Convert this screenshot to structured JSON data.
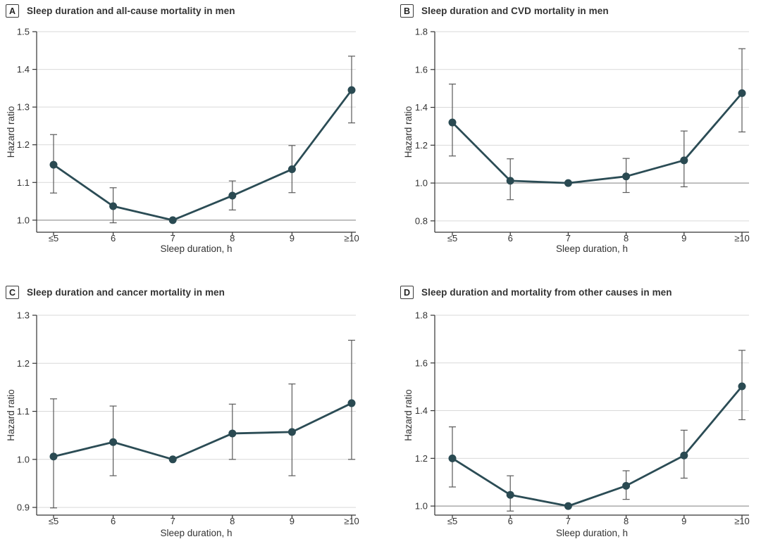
{
  "figure": {
    "description": "Four-panel line charts of hazard ratios by sleep duration in men",
    "colors": {
      "line": "#2b4c55",
      "marker": "#2a4a52",
      "error_bar": "#5a5a5a",
      "grid": "#d9d9d9",
      "ref_line": "#9b9b9b",
      "axis": "#333333",
      "text": "#333333"
    }
  },
  "chart_data": [
    {
      "type": "line",
      "panel_label": "A",
      "title": "Sleep duration and all-cause mortality in men",
      "xlabel": "Sleep duration, h",
      "ylabel": "Hazard ratio",
      "categories": [
        "≤5",
        "6",
        "7",
        "8",
        "9",
        "≥10"
      ],
      "yticks": [
        1.0,
        1.1,
        1.2,
        1.3,
        1.4,
        1.5
      ],
      "ylim": [
        0.968,
        1.5
      ],
      "ref_value": 1.0,
      "ref_dark": true,
      "grid": true,
      "legend": false,
      "points": [
        {
          "x": "≤5",
          "hr": 1.147,
          "lo": 1.072,
          "hi": 1.227
        },
        {
          "x": "6",
          "hr": 1.037,
          "lo": 0.993,
          "hi": 1.086
        },
        {
          "x": "7",
          "hr": 1.0,
          "lo": null,
          "hi": null
        },
        {
          "x": "8",
          "hr": 1.065,
          "lo": 1.027,
          "hi": 1.104
        },
        {
          "x": "9",
          "hr": 1.135,
          "lo": 1.073,
          "hi": 1.198
        },
        {
          "x": "≥10",
          "hr": 1.345,
          "lo": 1.258,
          "hi": 1.435
        }
      ]
    },
    {
      "type": "line",
      "panel_label": "B",
      "title": "Sleep duration and CVD mortality in men",
      "xlabel": "Sleep duration, h",
      "ylabel": "Hazard ratio",
      "categories": [
        "≤5",
        "6",
        "7",
        "8",
        "9",
        "≥10"
      ],
      "yticks": [
        0.8,
        1.0,
        1.2,
        1.4,
        1.6,
        1.8
      ],
      "ylim": [
        0.74,
        1.8
      ],
      "ref_value": 1.0,
      "ref_dark": true,
      "grid": true,
      "legend": false,
      "points": [
        {
          "x": "≤5",
          "hr": 1.32,
          "lo": 1.143,
          "hi": 1.523
        },
        {
          "x": "6",
          "hr": 1.012,
          "lo": 0.912,
          "hi": 1.128
        },
        {
          "x": "7",
          "hr": 1.0,
          "lo": null,
          "hi": null
        },
        {
          "x": "8",
          "hr": 1.035,
          "lo": 0.95,
          "hi": 1.13
        },
        {
          "x": "9",
          "hr": 1.12,
          "lo": 0.98,
          "hi": 1.275
        },
        {
          "x": "≥10",
          "hr": 1.475,
          "lo": 1.27,
          "hi": 1.71
        }
      ]
    },
    {
      "type": "line",
      "panel_label": "C",
      "title": "Sleep duration and cancer mortality in men",
      "xlabel": "Sleep duration, h",
      "ylabel": "Hazard ratio",
      "categories": [
        "≤5",
        "6",
        "7",
        "8",
        "9",
        "≥10"
      ],
      "yticks": [
        0.9,
        1.0,
        1.1,
        1.2,
        1.3
      ],
      "ylim": [
        0.884,
        1.3
      ],
      "ref_value": 1.0,
      "ref_dark": false,
      "grid": true,
      "legend": false,
      "points": [
        {
          "x": "≤5",
          "hr": 1.006,
          "lo": 0.899,
          "hi": 1.126
        },
        {
          "x": "6",
          "hr": 1.036,
          "lo": 0.966,
          "hi": 1.111
        },
        {
          "x": "7",
          "hr": 1.0,
          "lo": null,
          "hi": null
        },
        {
          "x": "8",
          "hr": 1.054,
          "lo": 1.0,
          "hi": 1.115
        },
        {
          "x": "9",
          "hr": 1.057,
          "lo": 0.966,
          "hi": 1.157
        },
        {
          "x": "≥10",
          "hr": 1.117,
          "lo": 1.0,
          "hi": 1.248
        }
      ]
    },
    {
      "type": "line",
      "panel_label": "D",
      "title": "Sleep duration and mortality from other causes in men",
      "xlabel": "Sleep duration, h",
      "ylabel": "Hazard ratio",
      "categories": [
        "≤5",
        "6",
        "7",
        "8",
        "9",
        "≥10"
      ],
      "yticks": [
        1.0,
        1.2,
        1.4,
        1.6,
        1.8
      ],
      "ylim": [
        0.962,
        1.8
      ],
      "ref_value": 1.0,
      "ref_dark": true,
      "grid": true,
      "legend": false,
      "points": [
        {
          "x": "≤5",
          "hr": 1.2,
          "lo": 1.08,
          "hi": 1.332
        },
        {
          "x": "6",
          "hr": 1.047,
          "lo": 0.979,
          "hi": 1.127
        },
        {
          "x": "7",
          "hr": 1.0,
          "lo": null,
          "hi": null
        },
        {
          "x": "8",
          "hr": 1.085,
          "lo": 1.028,
          "hi": 1.148
        },
        {
          "x": "9",
          "hr": 1.212,
          "lo": 1.117,
          "hi": 1.318
        },
        {
          "x": "≥10",
          "hr": 1.502,
          "lo": 1.362,
          "hi": 1.653
        }
      ]
    }
  ]
}
